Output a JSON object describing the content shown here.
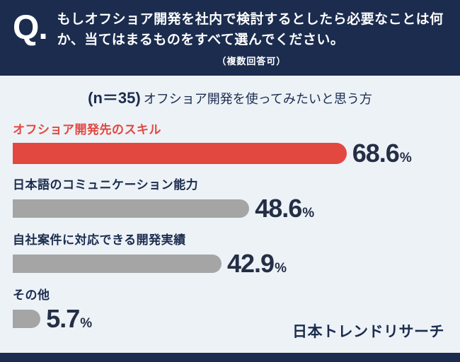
{
  "colors": {
    "navy": "#1b2c4e",
    "highlight": "#e2483f",
    "bar": "#a5a5a5",
    "background": "#edf2f7"
  },
  "header": {
    "q_mark": "Q.",
    "question": "もしオフショア開発を社内で検討するとしたら必要なことは何か、当てはまるものをすべて選んでください。",
    "note": "（複数回答可）"
  },
  "subtitle": {
    "n_label": "(n＝35)",
    "text": "オフショア開発を使ってみたいと思う方"
  },
  "chart_data": {
    "type": "bar",
    "orientation": "horizontal",
    "title": "もしオフショア開発を社内で検討するとしたら必要なことは何か",
    "categories": [
      "オフショア開発先のスキル",
      "日本語のコミュニケーション能力",
      "自社案件に対応できる開発実績",
      "その他"
    ],
    "values": [
      68.6,
      48.6,
      42.9,
      5.7
    ],
    "unit": "%",
    "xlim": [
      0,
      100
    ],
    "grid": false,
    "legend": false,
    "highlight_index": 0,
    "highlight_color": "#e2483f",
    "bar_color": "#a5a5a5"
  },
  "footer": {
    "brand": "日本トレンドリサーチ"
  }
}
